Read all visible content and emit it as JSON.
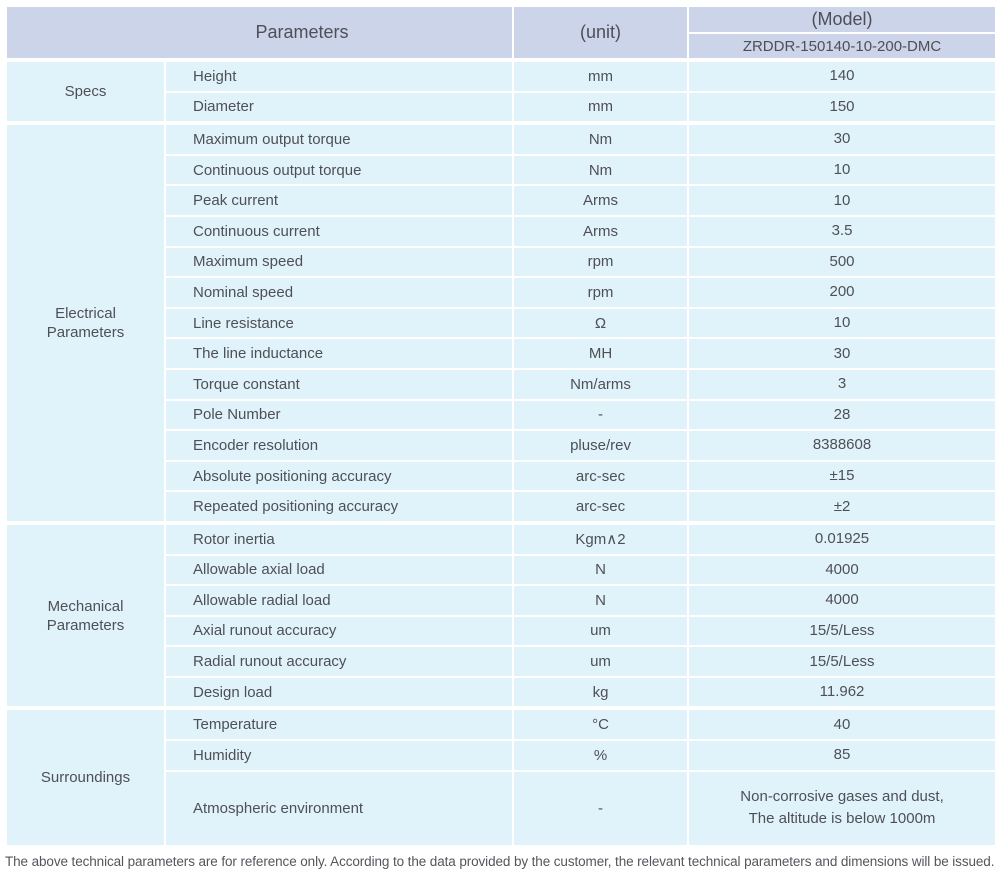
{
  "table": {
    "header": {
      "parameters_label": "Parameters",
      "unit_label": "(unit)",
      "model_label": "(Model)",
      "model_value": "ZRDDR-150140-10-200-DMC"
    },
    "groups": [
      {
        "name": "Specs",
        "rows": [
          {
            "parameter": "Height",
            "unit": "mm",
            "value": "140"
          },
          {
            "parameter": "Diameter",
            "unit": "mm",
            "value": "150"
          }
        ]
      },
      {
        "name": "Electrical Parameters",
        "rows": [
          {
            "parameter": "Maximum output torque",
            "unit": "Nm",
            "value": "30"
          },
          {
            "parameter": "Continuous output torque",
            "unit": "Nm",
            "value": "10"
          },
          {
            "parameter": "Peak current",
            "unit": "Arms",
            "value": "10"
          },
          {
            "parameter": "Continuous current",
            "unit": "Arms",
            "value": "3.5"
          },
          {
            "parameter": "Maximum speed",
            "unit": "rpm",
            "value": "500"
          },
          {
            "parameter": "Nominal speed",
            "unit": "rpm",
            "value": "200"
          },
          {
            "parameter": "Line resistance",
            "unit": "Ω",
            "value": "10"
          },
          {
            "parameter": "The line inductance",
            "unit": "MH",
            "value": "30"
          },
          {
            "parameter": "Torque constant",
            "unit": "Nm/arms",
            "value": "3"
          },
          {
            "parameter": "Pole Number",
            "unit": "-",
            "value": "28"
          },
          {
            "parameter": "Encoder resolution",
            "unit": "pluse/rev",
            "value": "8388608"
          },
          {
            "parameter": "Absolute positioning accuracy",
            "unit": "arc-sec",
            "value": "±15"
          },
          {
            "parameter": "Repeated positioning accuracy",
            "unit": "arc-sec",
            "value": "±2"
          }
        ]
      },
      {
        "name": "Mechanical Parameters",
        "rows": [
          {
            "parameter": "Rotor inertia",
            "unit": "Kgm∧2",
            "value": "0.01925"
          },
          {
            "parameter": "Allowable axial load",
            "unit": "N",
            "value": "4000"
          },
          {
            "parameter": "Allowable radial load",
            "unit": "N",
            "value": "4000"
          },
          {
            "parameter": "Axial runout accuracy",
            "unit": "um",
            "value": "15/5/Less"
          },
          {
            "parameter": "Radial runout accuracy",
            "unit": "um",
            "value": "15/5/Less"
          },
          {
            "parameter": "Design load",
            "unit": "kg",
            "value": "11.962"
          }
        ]
      },
      {
        "name": "Surroundings",
        "rows": [
          {
            "parameter": "Temperature",
            "unit": "°C",
            "value": "40"
          },
          {
            "parameter": "Humidity",
            "unit": "%",
            "value": "85"
          },
          {
            "parameter": "Atmospheric environment",
            "unit": "-",
            "value": [
              "Non-corrosive gases and dust,",
              "The altitude is below 1000m"
            ],
            "tall": true
          }
        ]
      }
    ]
  },
  "footer": {
    "note": "The above technical parameters are for reference only. According to the data provided by the customer, the relevant technical parameters and dimensions will be issued."
  },
  "colors": {
    "header_bg": "#ccd4e9",
    "body_bg": "#e1f3fa",
    "text": "#4e4f57",
    "footnote_text": "#55565c"
  }
}
